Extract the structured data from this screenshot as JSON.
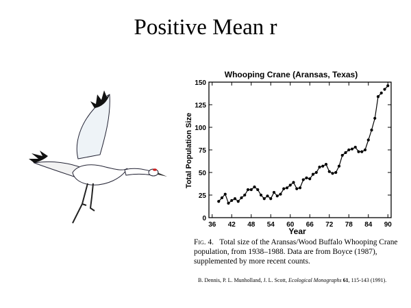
{
  "slide": {
    "title": "Positive Mean r"
  },
  "chart_data": {
    "type": "line",
    "title": "Whooping Crane (Aransas, Texas)",
    "xlabel": "Year",
    "ylabel": "Total Population Size",
    "xlim": [
      35,
      91
    ],
    "ylim": [
      0,
      150
    ],
    "xticks": [
      36,
      42,
      48,
      54,
      60,
      66,
      72,
      78,
      84,
      90
    ],
    "xtick_labels": [
      "36",
      "42",
      "48",
      "54",
      "60",
      "66",
      "72",
      "78",
      "84",
      "90"
    ],
    "yticks": [
      0,
      25,
      50,
      75,
      100,
      125,
      150
    ],
    "ytick_labels": [
      "0",
      "25",
      "50",
      "75",
      "100",
      "125",
      "150"
    ],
    "grid": false,
    "series": [
      {
        "x": [
          38,
          39,
          40,
          41,
          42,
          43,
          44,
          45,
          46,
          47,
          48,
          49,
          50,
          51,
          52,
          53,
          54,
          55,
          56,
          57,
          58,
          59,
          60,
          61,
          62,
          63,
          64,
          65,
          66,
          67,
          68,
          69,
          70,
          71,
          72,
          73,
          74,
          75,
          76,
          77,
          78,
          79,
          80,
          81,
          82,
          83,
          84,
          85,
          86,
          87,
          88
        ],
        "y": [
          18,
          22,
          26,
          16,
          19,
          21,
          18,
          22,
          25,
          31,
          31,
          34,
          31,
          25,
          21,
          24,
          21,
          28,
          24,
          26,
          32,
          33,
          36,
          39,
          32,
          33,
          42,
          44,
          43,
          48,
          50,
          56,
          57,
          59,
          51,
          49,
          50,
          57,
          69,
          72,
          75,
          76,
          78,
          73,
          73,
          75,
          86,
          97,
          110,
          134,
          138
        ]
      },
      {
        "x": [
          89,
          90
        ],
        "y": [
          142,
          146
        ]
      }
    ]
  },
  "caption": {
    "fig_label": "Fig. 4.",
    "text": "Total size of the Aransas/Wood Buffalo Whooping Crane population, from 1938–1988. Data are from Boyce (1987), supplemented by more recent counts."
  },
  "citation": {
    "authors": "B. Dennis, P. L. Munholland, J. L. Scott, ",
    "journal": "Ecological Monographs",
    "volume": " 61",
    "pages": ", 115-143 (1991)."
  },
  "colors": {
    "line": "#000000",
    "crane_body": "#ffffff",
    "crane_wing_tip": "#111111",
    "crane_crown": "#cc2222"
  }
}
